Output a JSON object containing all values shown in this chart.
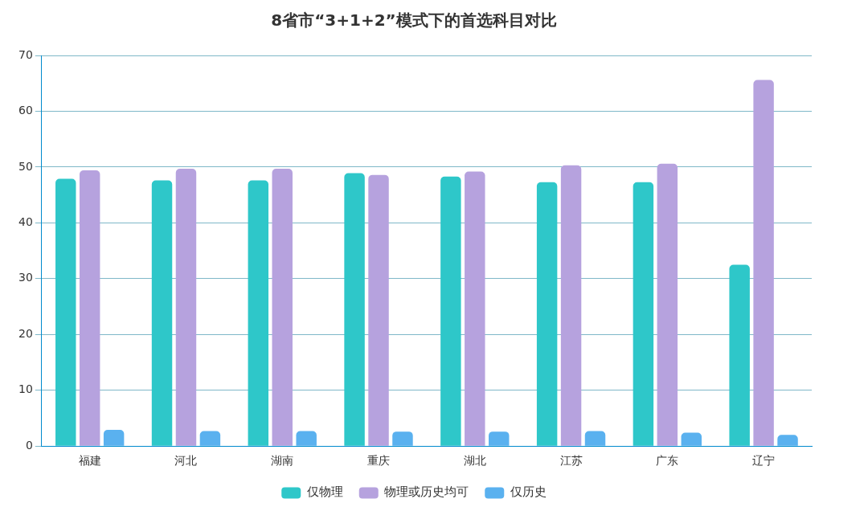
{
  "chart_data": {
    "type": "bar",
    "title": "8省市“3+1+2”模式下的首选科目对比",
    "categories": [
      "福建",
      "河北",
      "湖南",
      "重庆",
      "湖北",
      "江苏",
      "广东",
      "辽宁"
    ],
    "series": [
      {
        "name": "仅物理",
        "color": "#2ec7c9",
        "values": [
          47.9,
          47.6,
          47.6,
          48.9,
          48.3,
          47.3,
          47.3,
          32.5
        ]
      },
      {
        "name": "物理或历史均可",
        "color": "#b6a2de",
        "values": [
          49.4,
          49.7,
          49.7,
          48.6,
          49.2,
          50.3,
          50.6,
          65.6
        ]
      },
      {
        "name": "仅历史",
        "color": "#5ab1ef",
        "values": [
          2.9,
          2.7,
          2.7,
          2.6,
          2.6,
          2.7,
          2.4,
          2.0
        ]
      }
    ],
    "ylim": [
      0,
      70
    ],
    "yticks": [
      0,
      10,
      20,
      30,
      40,
      50,
      60,
      70
    ],
    "grid": "y",
    "legend": "bottom"
  }
}
